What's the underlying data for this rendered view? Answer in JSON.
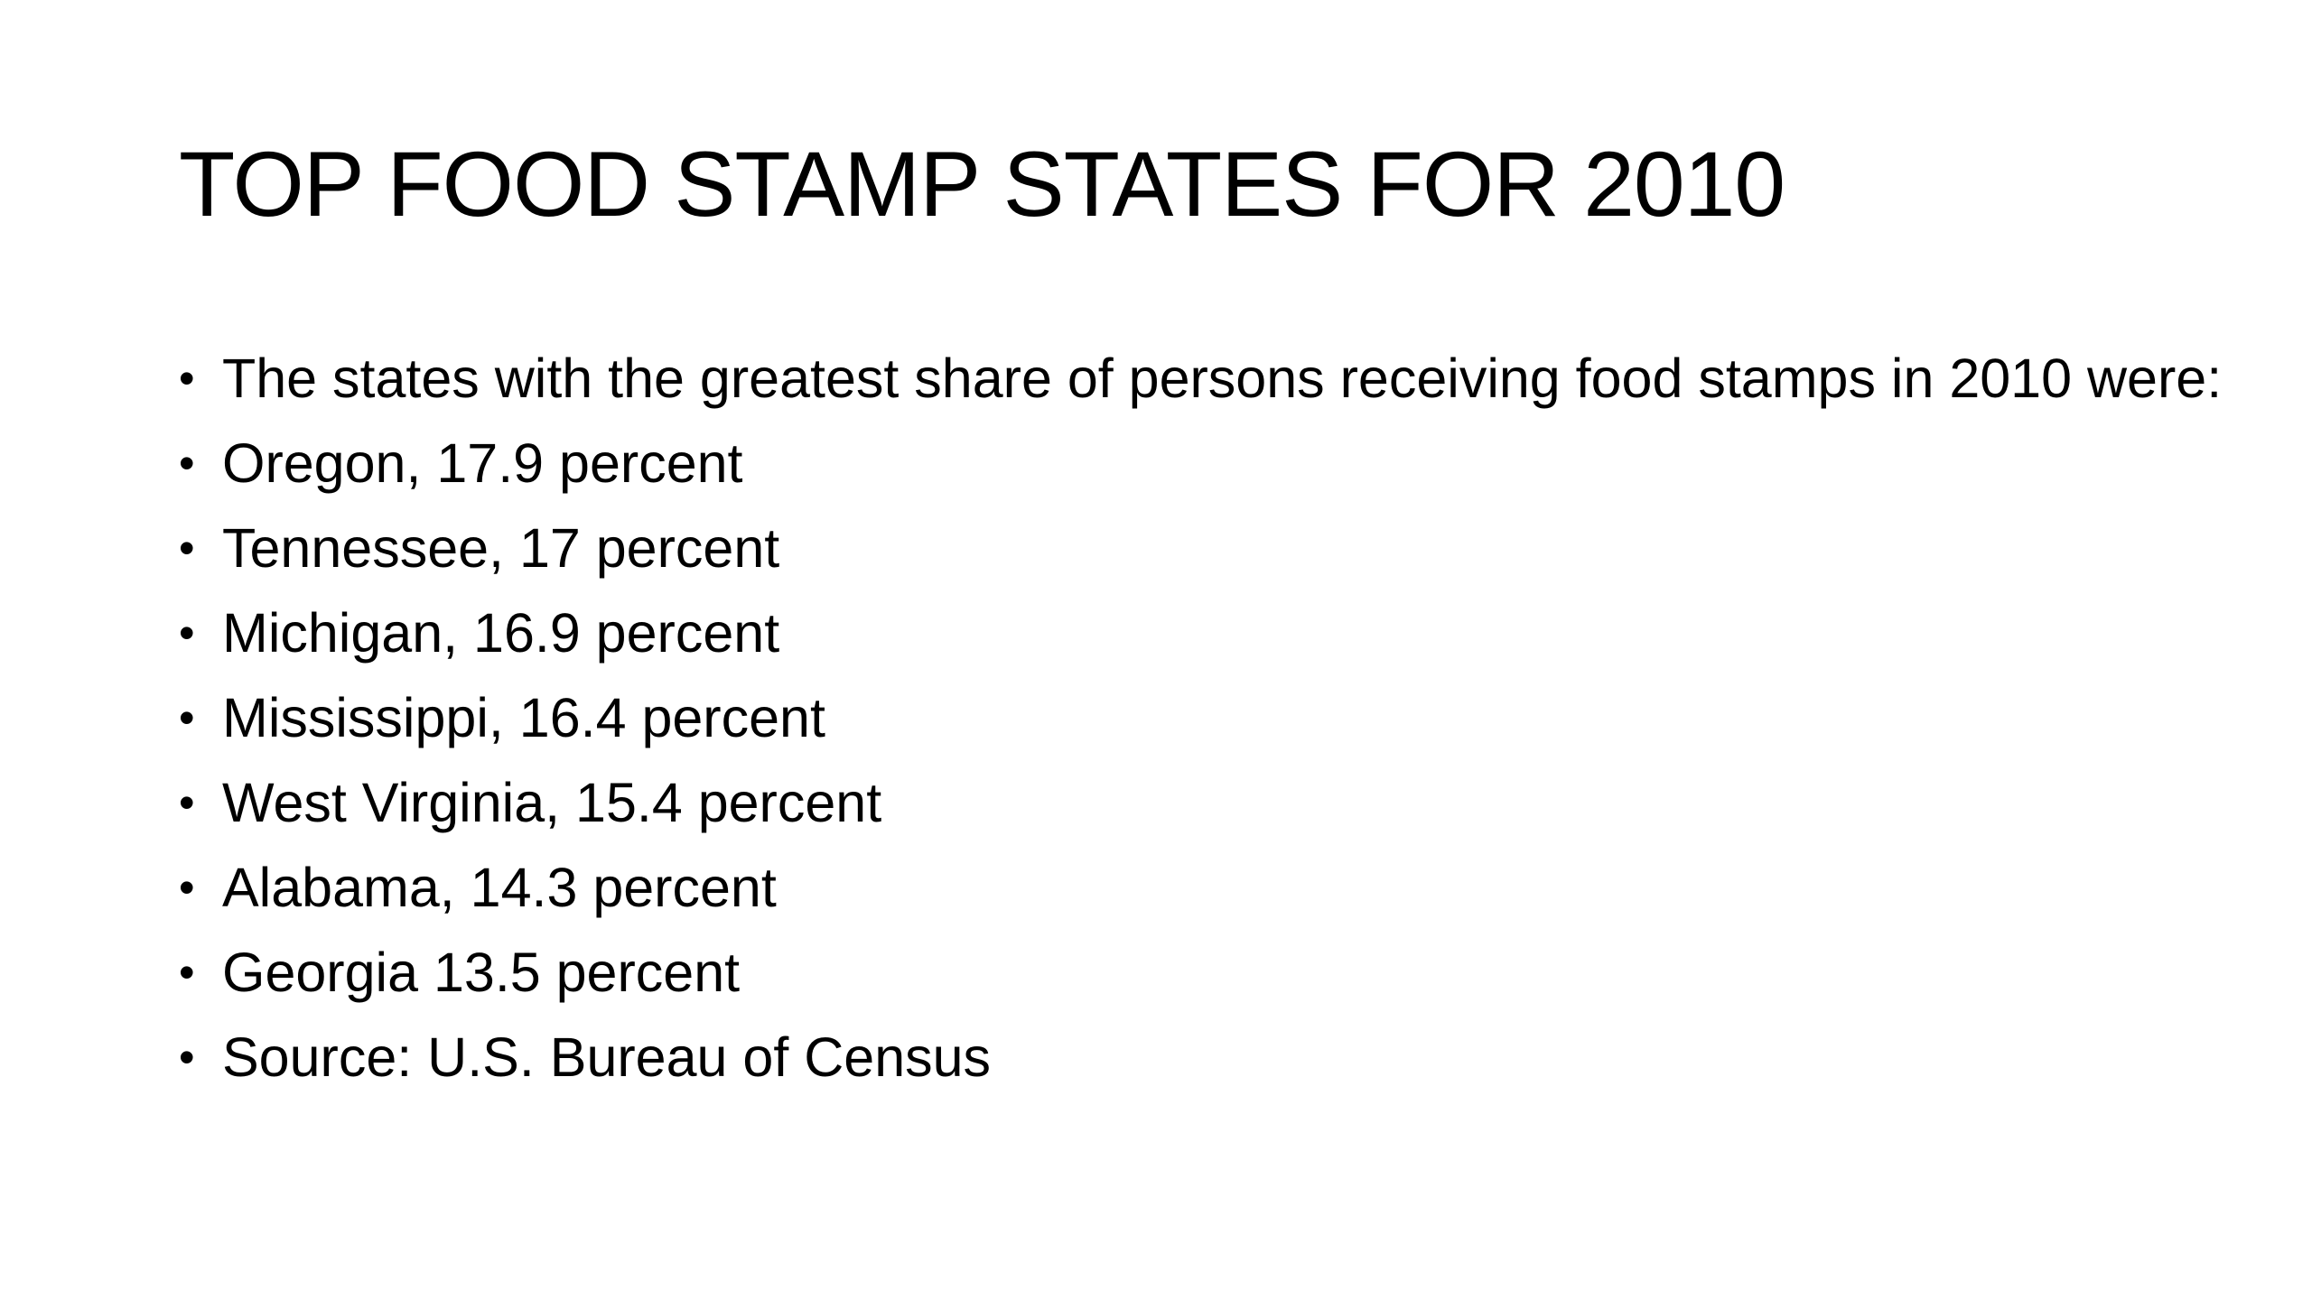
{
  "slide": {
    "title": "TOP FOOD STAMP STATES FOR 2010",
    "bullet_glyph": "•",
    "bullets": [
      "The states with the greatest share of persons receiving food stamps in 2010 were:",
      "Oregon, 17.9 percent",
      "Tennessee, 17 percent",
      "Michigan, 16.9 percent",
      "Mississippi, 16.4 percent",
      "West Virginia, 15.4 percent",
      "Alabama, 14.3 percent",
      "Georgia 13.5 percent",
      "Source: U.S. Bureau of Census"
    ]
  }
}
